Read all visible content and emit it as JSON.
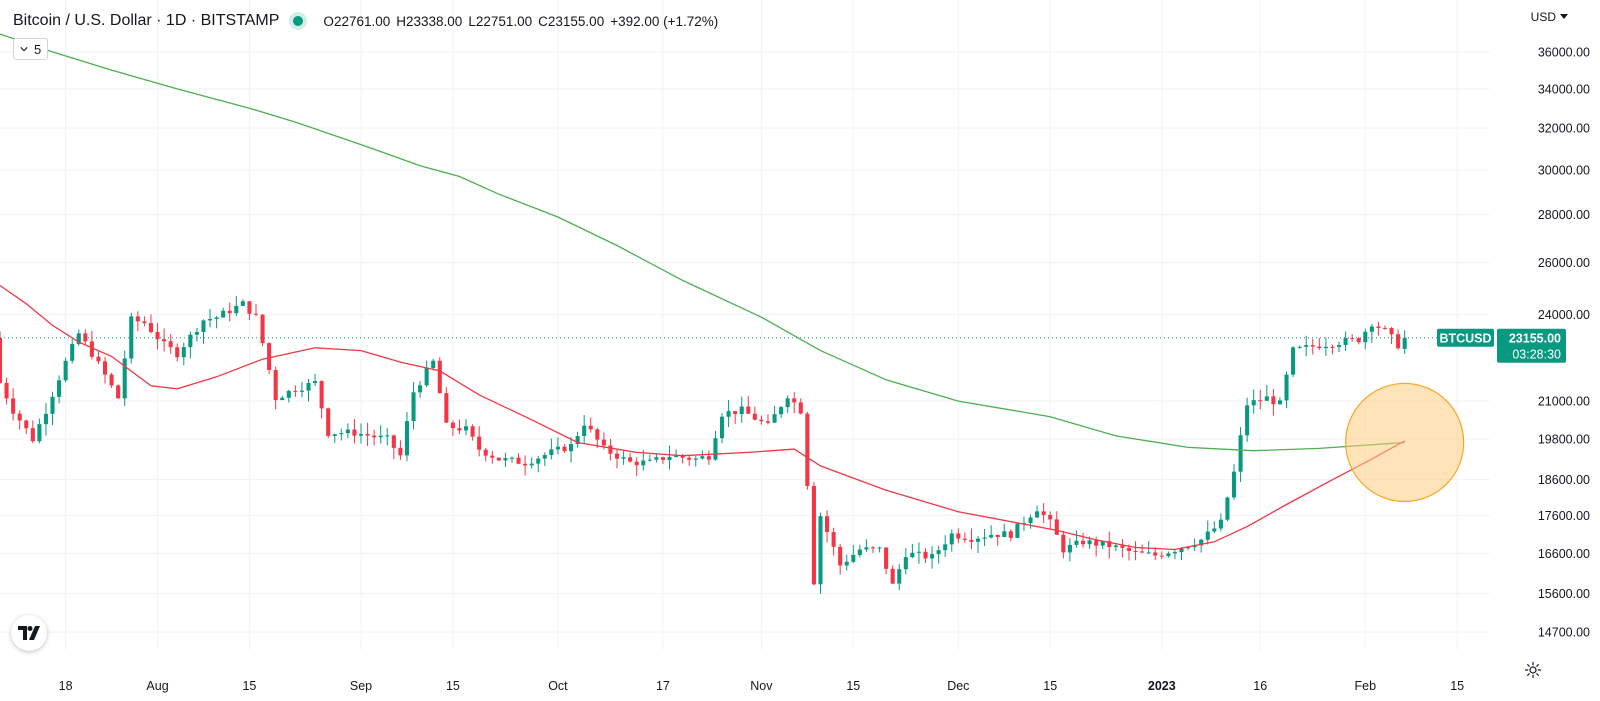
{
  "header": {
    "symbol_title": "Bitcoin / U.S. Dollar · 1D · BITSTAMP",
    "ohlc": {
      "o_label": "O",
      "o": "22761.00",
      "h_label": "H",
      "h": "23338.00",
      "l_label": "L",
      "l": "22751.00",
      "c_label": "C",
      "c": "23155.00"
    },
    "change": "+392.00 (+1.72%)",
    "indicator_count": "5",
    "currency": "USD"
  },
  "colors": {
    "up": "#089981",
    "down": "#f23645",
    "ma_short": "#f23645",
    "ma_long": "#4caf50",
    "highlight_fill": "#ffcc80",
    "highlight_stroke": "#f5a623",
    "grid": "#f0f3fa",
    "axis_text": "#131722"
  },
  "icons": {
    "logo": "tradingview-logo-icon",
    "settings": "gear-icon",
    "dropdown": "chevron-down-icon",
    "live": "live-status-dot"
  },
  "chart_data": {
    "type": "candlestick",
    "symbol": "BTCUSD",
    "interval": "1D",
    "x_ticks": [
      {
        "label": "18",
        "date": "2022-07-18"
      },
      {
        "label": "Aug",
        "date": "2022-08-01"
      },
      {
        "label": "15",
        "date": "2022-08-15"
      },
      {
        "label": "Sep",
        "date": "2022-09-01"
      },
      {
        "label": "15",
        "date": "2022-09-15"
      },
      {
        "label": "Oct",
        "date": "2022-10-01"
      },
      {
        "label": "17",
        "date": "2022-10-17"
      },
      {
        "label": "Nov",
        "date": "2022-11-01"
      },
      {
        "label": "15",
        "date": "2022-11-15"
      },
      {
        "label": "Dec",
        "date": "2022-12-01"
      },
      {
        "label": "15",
        "date": "2022-12-15"
      },
      {
        "label": "2023",
        "date": "2023-01-01",
        "bold": true
      },
      {
        "label": "16",
        "date": "2023-01-16"
      },
      {
        "label": "Feb",
        "date": "2023-02-01"
      },
      {
        "label": "15",
        "date": "2023-02-15"
      }
    ],
    "y_ticks": [
      "36000.00",
      "34000.00",
      "32000.00",
      "30000.00",
      "28000.00",
      "26000.00",
      "24000.00",
      "21000.00",
      "19800.00",
      "18600.00",
      "17600.00",
      "16600.00",
      "15600.00",
      "14700.00"
    ],
    "y_scale": "log",
    "ylim": [
      14300,
      39000
    ],
    "xlim": [
      "2022-07-08",
      "2023-02-20"
    ],
    "last_price_label": {
      "symbol": "BTCUSD",
      "price": "23155.00",
      "countdown": "03:28:30",
      "value": 23155
    },
    "highlight_circle": {
      "date": "2023-02-07",
      "value": 19700,
      "note": "MA crossover"
    },
    "ma_short": [
      [
        "2022-07-08",
        25100
      ],
      [
        "2022-07-12",
        24400
      ],
      [
        "2022-07-16",
        23600
      ],
      [
        "2022-07-20",
        23000
      ],
      [
        "2022-07-25",
        22500
      ],
      [
        "2022-07-31",
        21500
      ],
      [
        "2022-08-04",
        21400
      ],
      [
        "2022-08-10",
        21800
      ],
      [
        "2022-08-17",
        22400
      ],
      [
        "2022-08-25",
        22800
      ],
      [
        "2022-09-01",
        22700
      ],
      [
        "2022-09-07",
        22300
      ],
      [
        "2022-09-13",
        22000
      ],
      [
        "2022-09-19",
        21200
      ],
      [
        "2022-09-27",
        20400
      ],
      [
        "2022-10-04",
        19700
      ],
      [
        "2022-10-13",
        19400
      ],
      [
        "2022-10-20",
        19300
      ],
      [
        "2022-10-30",
        19400
      ],
      [
        "2022-11-06",
        19500
      ],
      [
        "2022-11-10",
        19000
      ],
      [
        "2022-11-20",
        18300
      ],
      [
        "2022-12-01",
        17700
      ],
      [
        "2022-12-10",
        17400
      ],
      [
        "2022-12-16",
        17200
      ],
      [
        "2022-12-22",
        16950
      ],
      [
        "2022-12-28",
        16750
      ],
      [
        "2023-01-03",
        16700
      ],
      [
        "2023-01-09",
        16900
      ],
      [
        "2023-01-14",
        17300
      ],
      [
        "2023-01-20",
        17900
      ],
      [
        "2023-01-27",
        18600
      ],
      [
        "2023-02-02",
        19200
      ],
      [
        "2023-02-07",
        19750
      ]
    ],
    "ma_long": [
      [
        "2022-07-08",
        37000
      ],
      [
        "2022-07-16",
        36000
      ],
      [
        "2022-07-25",
        35000
      ],
      [
        "2022-08-04",
        34000
      ],
      [
        "2022-08-15",
        33000
      ],
      [
        "2022-08-22",
        32300
      ],
      [
        "2022-09-01",
        31200
      ],
      [
        "2022-09-10",
        30200
      ],
      [
        "2022-09-16",
        29700
      ],
      [
        "2022-09-22",
        28900
      ],
      [
        "2022-10-01",
        27900
      ],
      [
        "2022-10-10",
        26700
      ],
      [
        "2022-10-20",
        25300
      ],
      [
        "2022-11-01",
        23900
      ],
      [
        "2022-11-10",
        22700
      ],
      [
        "2022-11-20",
        21700
      ],
      [
        "2022-12-01",
        21000
      ],
      [
        "2022-12-15",
        20500
      ],
      [
        "2022-12-25",
        19900
      ],
      [
        "2023-01-05",
        19550
      ],
      [
        "2023-01-15",
        19450
      ],
      [
        "2023-01-25",
        19520
      ],
      [
        "2023-02-07",
        19700
      ]
    ],
    "candle_anchors": [
      [
        "2022-07-08",
        21600
      ],
      [
        "2022-07-10",
        20700
      ],
      [
        "2022-07-13",
        19800
      ],
      [
        "2022-07-15",
        20700
      ],
      [
        "2022-07-18",
        22300
      ],
      [
        "2022-07-20",
        23300
      ],
      [
        "2022-07-22",
        22600
      ],
      [
        "2022-07-26",
        21100
      ],
      [
        "2022-07-28",
        23800
      ],
      [
        "2022-07-30",
        23700
      ],
      [
        "2022-08-02",
        22900
      ],
      [
        "2022-08-04",
        22600
      ],
      [
        "2022-08-08",
        23800
      ],
      [
        "2022-08-10",
        23900
      ],
      [
        "2022-08-14",
        24400
      ],
      [
        "2022-08-16",
        23900
      ],
      [
        "2022-08-19",
        21100
      ],
      [
        "2022-08-22",
        21400
      ],
      [
        "2022-08-25",
        21600
      ],
      [
        "2022-08-27",
        20000
      ],
      [
        "2022-08-31",
        20000
      ],
      [
        "2022-09-05",
        19800
      ],
      [
        "2022-09-07",
        19300
      ],
      [
        "2022-09-09",
        21300
      ],
      [
        "2022-09-12",
        22300
      ],
      [
        "2022-09-14",
        20200
      ],
      [
        "2022-09-17",
        20100
      ],
      [
        "2022-09-19",
        19500
      ],
      [
        "2022-09-22",
        19200
      ],
      [
        "2022-09-26",
        19100
      ],
      [
        "2022-09-30",
        19400
      ],
      [
        "2022-10-03",
        19600
      ],
      [
        "2022-10-05",
        20300
      ],
      [
        "2022-10-08",
        19500
      ],
      [
        "2022-10-12",
        19100
      ],
      [
        "2022-10-15",
        19100
      ],
      [
        "2022-10-18",
        19300
      ],
      [
        "2022-10-22",
        19200
      ],
      [
        "2022-10-24",
        19300
      ],
      [
        "2022-10-26",
        20600
      ],
      [
        "2022-10-29",
        20700
      ],
      [
        "2022-11-02",
        20200
      ],
      [
        "2022-11-05",
        21200
      ],
      [
        "2022-11-07",
        20700
      ],
      [
        "2022-11-08",
        18500
      ],
      [
        "2022-11-09",
        15900
      ],
      [
        "2022-11-10",
        17600
      ],
      [
        "2022-11-13",
        16300
      ],
      [
        "2022-11-16",
        16700
      ],
      [
        "2022-11-19",
        16700
      ],
      [
        "2022-11-21",
        15800
      ],
      [
        "2022-11-23",
        16600
      ],
      [
        "2022-11-27",
        16500
      ],
      [
        "2022-11-30",
        17100
      ],
      [
        "2022-12-03",
        17000
      ],
      [
        "2022-12-06",
        17100
      ],
      [
        "2022-12-09",
        17100
      ],
      [
        "2022-12-13",
        17800
      ],
      [
        "2022-12-15",
        17400
      ],
      [
        "2022-12-17",
        16700
      ],
      [
        "2022-12-20",
        16900
      ],
      [
        "2022-12-24",
        16800
      ],
      [
        "2022-12-28",
        16600
      ],
      [
        "2022-12-31",
        16550
      ],
      [
        "2023-01-03",
        16700
      ],
      [
        "2023-01-07",
        16950
      ],
      [
        "2023-01-10",
        17400
      ],
      [
        "2023-01-12",
        18800
      ],
      [
        "2023-01-14",
        20900
      ],
      [
        "2023-01-17",
        21100
      ],
      [
        "2023-01-19",
        20900
      ],
      [
        "2023-01-21",
        22700
      ],
      [
        "2023-01-25",
        22900
      ],
      [
        "2023-01-28",
        23000
      ],
      [
        "2023-01-31",
        23100
      ],
      [
        "2023-02-02",
        23700
      ],
      [
        "2023-02-04",
        23400
      ],
      [
        "2023-02-06",
        22900
      ],
      [
        "2023-02-07",
        23155
      ]
    ]
  }
}
